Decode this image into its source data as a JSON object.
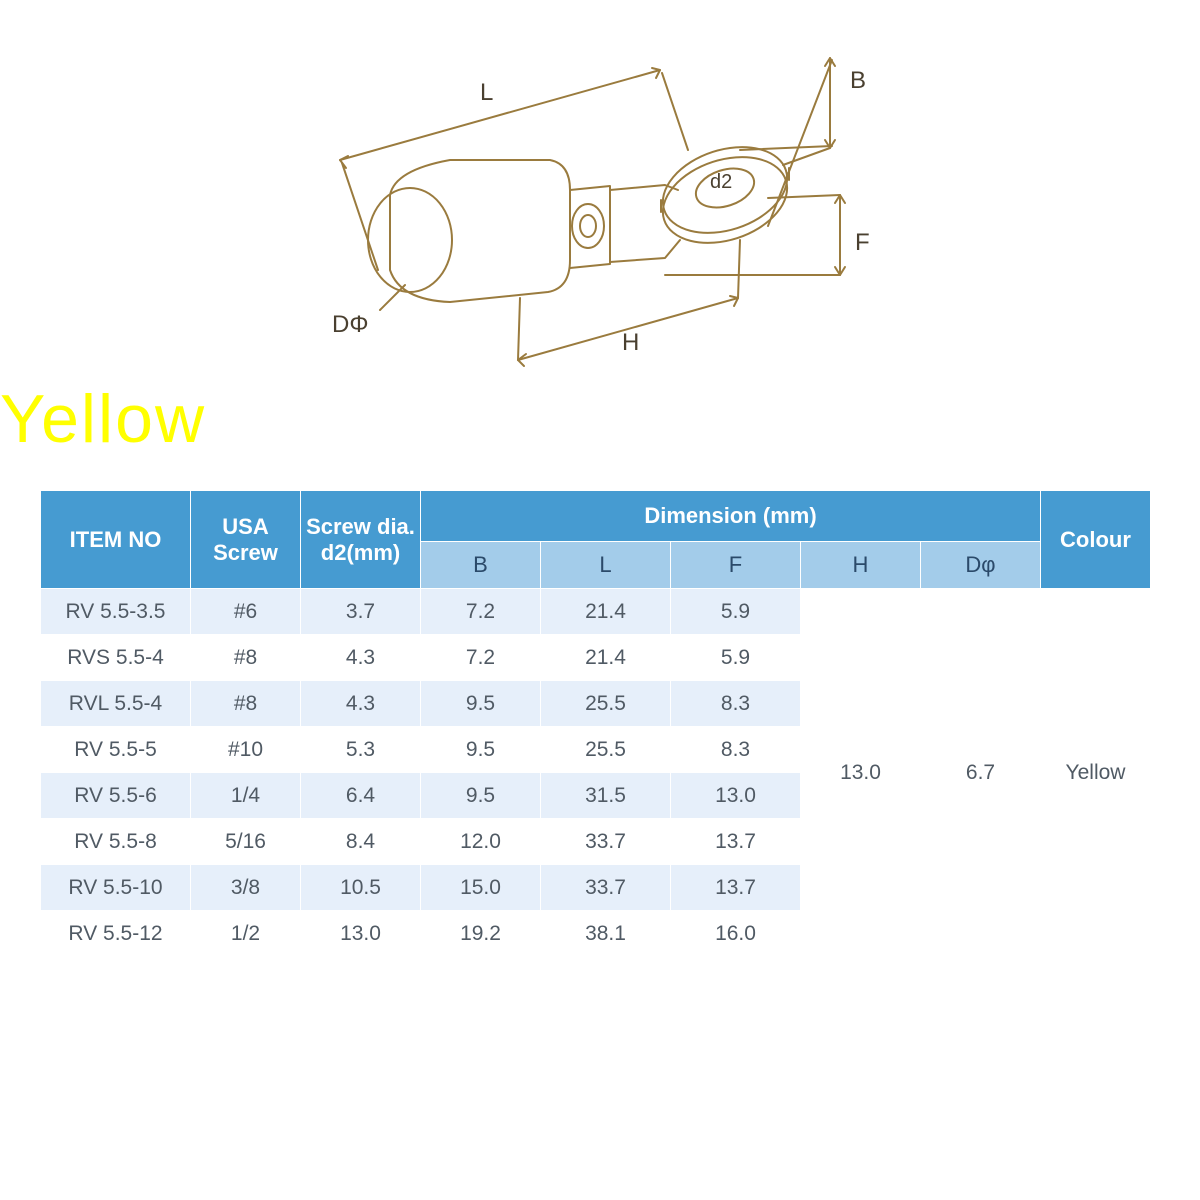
{
  "colors": {
    "header_dark": "#469bd1",
    "header_light": "#a3ccea",
    "row_odd": "#e6effa",
    "row_even": "#ffffff",
    "row_text": "#505a64",
    "diagram_line": "#9a7b3e",
    "title_yellow": "#ffff00",
    "light_text": "#2b4a6a"
  },
  "title": "Yellow",
  "diagram": {
    "labels": {
      "L": "L",
      "B": "B",
      "d2": "d2",
      "F": "F",
      "H": "H",
      "Dphi": "DΦ"
    }
  },
  "table": {
    "headers": {
      "item": "ITEM  NO",
      "usa": "USA Screw",
      "d2": "Screw dia. d2(mm)",
      "dim": "Dimension (mm)",
      "B": "B",
      "L": "L",
      "F": "F",
      "H": "H",
      "Dphi": "Dφ",
      "colour": "Colour"
    },
    "rows": [
      {
        "item": "RV 5.5-3.5",
        "usa": "#6",
        "d2": "3.7",
        "B": "7.2",
        "L": "21.4",
        "F": "5.9"
      },
      {
        "item": "RVS 5.5-4",
        "usa": "#8",
        "d2": "4.3",
        "B": "7.2",
        "L": "21.4",
        "F": "5.9"
      },
      {
        "item": "RVL 5.5-4",
        "usa": "#8",
        "d2": "4.3",
        "B": "9.5",
        "L": "25.5",
        "F": "8.3"
      },
      {
        "item": "RV 5.5-5",
        "usa": "#10",
        "d2": "5.3",
        "B": "9.5",
        "L": "25.5",
        "F": "8.3"
      },
      {
        "item": "RV 5.5-6",
        "usa": "1/4",
        "d2": "6.4",
        "B": "9.5",
        "L": "31.5",
        "F": "13.0"
      },
      {
        "item": "RV 5.5-8",
        "usa": "5/16",
        "d2": "8.4",
        "B": "12.0",
        "L": "33.7",
        "F": "13.7"
      },
      {
        "item": "RV 5.5-10",
        "usa": "3/8",
        "d2": "10.5",
        "B": "15.0",
        "L": "33.7",
        "F": "13.7"
      },
      {
        "item": "RV 5.5-12",
        "usa": "1/2",
        "d2": "13.0",
        "B": "19.2",
        "L": "38.1",
        "F": "16.0"
      }
    ],
    "merged": {
      "H": "13.0",
      "Dphi": "6.7",
      "colour": "Yellow"
    }
  }
}
